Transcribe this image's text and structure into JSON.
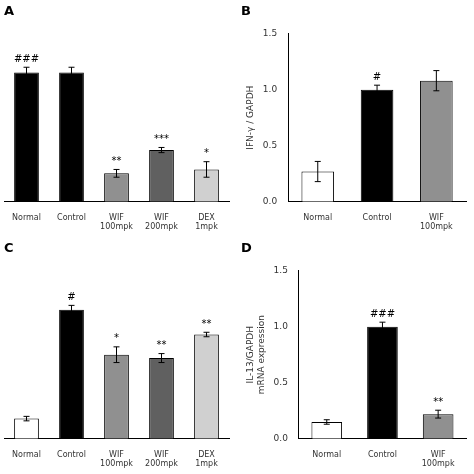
{
  "chart_data": [
    {
      "type": "bar",
      "title": "A",
      "categories": [
        "Normal",
        "Control",
        "WIF\n100mpk",
        "WIF\n200mpk",
        "DEX\n1mpk"
      ],
      "values": [
        1.0,
        1.0,
        0.22,
        0.4,
        0.25
      ],
      "errors": [
        0.04,
        0.04,
        0.03,
        0.02,
        0.06
      ],
      "colors": [
        "#000000",
        "#000000",
        "#909090",
        "#606060",
        "#d0d0d0"
      ],
      "annotations": [
        "###",
        null,
        "**",
        "***",
        "*"
      ],
      "ylim": [
        0,
        1.3
      ],
      "tick_labels": "x",
      "grid": false
    },
    {
      "type": "bar",
      "title": "B",
      "categories": [
        "Normal",
        "Control",
        "WIF\n100mpk"
      ],
      "values": [
        0.27,
        1.0,
        1.08
      ],
      "errors": [
        0.09,
        0.04,
        0.09
      ],
      "colors": [
        "#ffffff",
        "#000000",
        "#909090"
      ],
      "annotations": [
        null,
        "#",
        null
      ],
      "y_label": "IFN-γ / GAPDH",
      "ylim": [
        0,
        1.5
      ],
      "yticks": [
        {
          "value": 0.0,
          "label": "0.0"
        },
        0.5,
        {
          "value": 1.0,
          "label": "1.0"
        },
        1.5
      ],
      "grid": false
    },
    {
      "type": "bar",
      "title": "C",
      "categories": [
        "Normal",
        "Control",
        "WIF\n100mpk",
        "WIF\n200mpk",
        "DEX\n1mpk"
      ],
      "values": [
        0.18,
        1.15,
        0.75,
        0.72,
        0.93
      ],
      "errors": [
        0.02,
        0.04,
        0.07,
        0.04,
        0.02
      ],
      "colors": [
        "#ffffff",
        "#000000",
        "#909090",
        "#606060",
        "#d0d0d0"
      ],
      "annotations": [
        null,
        "#",
        "*",
        "**",
        "**"
      ],
      "ylim": [
        0,
        1.5
      ],
      "tick_labels": "x",
      "grid": false
    },
    {
      "type": "bar",
      "title": "D",
      "categories": [
        "Normal",
        "Control",
        "WIF\n100mpk"
      ],
      "values": [
        0.15,
        1.0,
        0.22
      ],
      "errors": [
        0.02,
        0.04,
        0.035
      ],
      "colors": [
        "#ffffff",
        "#000000",
        "#909090"
      ],
      "annotations": [
        null,
        "###",
        "**"
      ],
      "y_label": "IL-13/GAPDH\nmRNA expression",
      "ylim": [
        0,
        1.5
      ],
      "yticks": [
        {
          "value": 0.0,
          "label": "0.0"
        },
        0.5,
        {
          "value": 1.0,
          "label": "1.0"
        },
        1.5
      ],
      "grid": false
    }
  ]
}
